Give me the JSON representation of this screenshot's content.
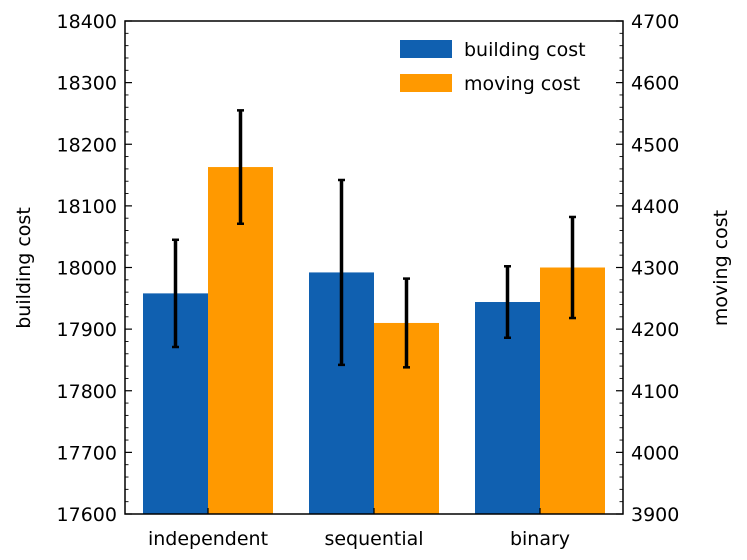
{
  "chart_data": {
    "type": "bar",
    "categories": [
      "independent",
      "sequential",
      "binary"
    ],
    "series": [
      {
        "name": "building cost",
        "axis": "left",
        "color": "#1060b0",
        "values": [
          17958,
          17992,
          17944
        ],
        "errors": [
          87,
          150,
          58
        ]
      },
      {
        "name": "moving cost",
        "axis": "right",
        "color": "#ff9900",
        "values": [
          4463,
          4210,
          4300
        ],
        "errors": [
          92,
          72,
          82
        ]
      }
    ],
    "ylabel_left": "building cost",
    "ylabel_right": "moving cost",
    "ylim_left": [
      17600,
      18400
    ],
    "ylim_right": [
      3900,
      4700
    ],
    "yticks_left": [
      17600,
      17700,
      17800,
      17900,
      18000,
      18100,
      18200,
      18300,
      18400
    ],
    "yticks_right": [
      3900,
      4000,
      4100,
      4200,
      4300,
      4400,
      4500,
      4600,
      4700
    ],
    "legend_position": "top-right",
    "legend_entries": [
      "building cost",
      "moving cost"
    ]
  }
}
